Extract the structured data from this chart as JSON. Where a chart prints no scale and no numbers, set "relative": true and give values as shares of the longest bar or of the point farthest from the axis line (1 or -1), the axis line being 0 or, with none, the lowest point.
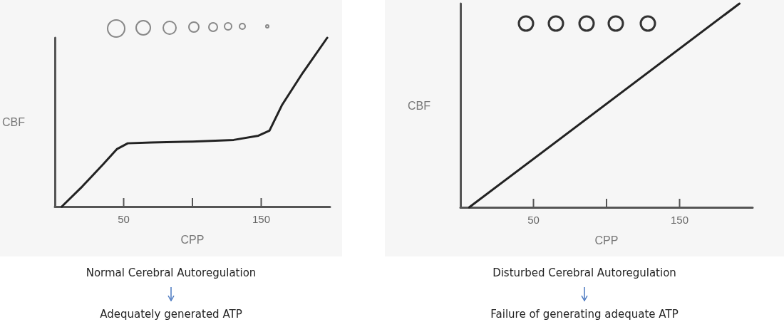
{
  "chart_data": [
    {
      "type": "line",
      "xlabel": "CPP",
      "ylabel": "CBF",
      "relative": true,
      "xlim": [
        0,
        200
      ],
      "xticks": [
        {
          "value": 50,
          "label": "50"
        },
        {
          "value": 100,
          "label": null
        },
        {
          "value": 150,
          "label": "150"
        }
      ],
      "grid": false,
      "marker": "none",
      "series": [
        {
          "color": "#222222",
          "x": [
            5,
            20,
            35,
            45,
            53,
            70,
            100,
            130,
            148,
            156,
            165,
            180,
            198
          ],
          "values": [
            0,
            0.12,
            0.25,
            0.34,
            0.375,
            0.38,
            0.385,
            0.395,
            0.42,
            0.45,
            0.6,
            0.79,
            1
          ]
        }
      ],
      "annotations": [
        "Normal Cerebral Autoregulation",
        "Adequately generated ATP"
      ]
    },
    {
      "type": "line",
      "xlabel": "CPP",
      "ylabel": "CBF",
      "relative": true,
      "xlim": [
        0,
        200
      ],
      "xticks": [
        {
          "value": 50,
          "label": "50"
        },
        {
          "value": 100,
          "label": null
        },
        {
          "value": 150,
          "label": "150"
        }
      ],
      "grid": false,
      "marker": "none",
      "series": [
        {
          "color": "#222222",
          "x": [
            6,
            191
          ],
          "values": [
            0,
            1
          ]
        }
      ],
      "annotations": [
        "Disturbed Cerebral Autoregulation",
        "Failure of generating adequate ATP"
      ]
    }
  ]
}
